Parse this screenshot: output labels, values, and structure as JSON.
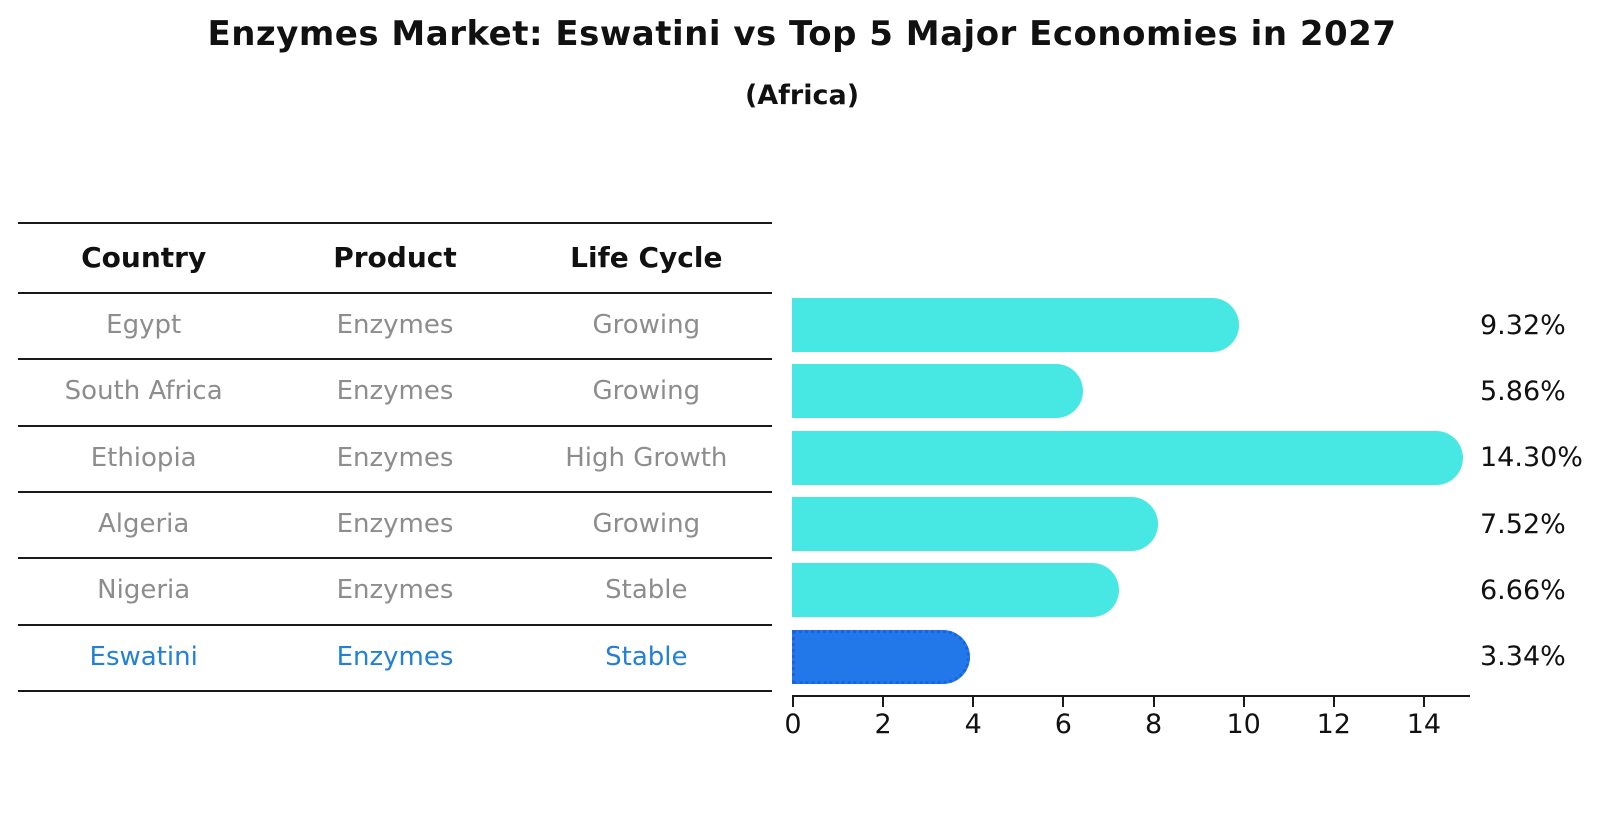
{
  "title": "Enzymes Market: Eswatini vs Top 5 Major Economies in 2027",
  "subtitle": "(Africa)",
  "table": {
    "headers": [
      "Country",
      "Product",
      "Life Cycle"
    ],
    "rows": [
      {
        "country": "Egypt",
        "product": "Enzymes",
        "life_cycle": "Growing",
        "highlight": false
      },
      {
        "country": "South Africa",
        "product": "Enzymes",
        "life_cycle": "Growing",
        "highlight": false
      },
      {
        "country": "Ethiopia",
        "product": "Enzymes",
        "life_cycle": "High Growth",
        "highlight": false
      },
      {
        "country": "Algeria",
        "product": "Enzymes",
        "life_cycle": "Growing",
        "highlight": false
      },
      {
        "country": "Nigeria",
        "product": "Enzymes",
        "life_cycle": "Stable",
        "highlight": false
      },
      {
        "country": "Eswatini",
        "product": "Enzymes",
        "life_cycle": "Stable",
        "highlight": true
      }
    ]
  },
  "chart_data": {
    "type": "bar",
    "orientation": "horizontal",
    "title": "Enzymes Market: Eswatini vs Top 5 Major Economies in 2027",
    "subtitle": "(Africa)",
    "categories": [
      "Egypt",
      "South Africa",
      "Ethiopia",
      "Algeria",
      "Nigeria",
      "Eswatini"
    ],
    "values": [
      9.32,
      5.86,
      14.3,
      7.52,
      6.66,
      3.34
    ],
    "value_labels": [
      "9.32%",
      "5.86%",
      "14.30%",
      "7.52%",
      "6.66%",
      "3.34%"
    ],
    "xlim": [
      0,
      15
    ],
    "x_ticks": [
      0,
      2,
      4,
      6,
      8,
      10,
      12,
      14
    ],
    "grid": false,
    "legend": false,
    "highlight_index": 5
  },
  "colors": {
    "bar": "#47e7e3",
    "highlight_bar": "#2278e8",
    "highlight_border": "#1565e0",
    "highlight_text": "#2380d8",
    "row_text": "#8d8d8d",
    "axis": "#1a1a1a"
  }
}
